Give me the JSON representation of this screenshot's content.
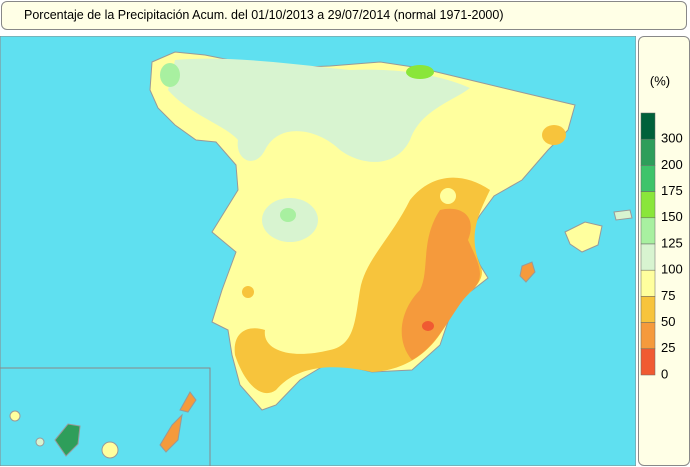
{
  "title": "Porcentaje de la Precipitación Acum. del 01/10/2013 a  29/07/2014  (normal 1971-2000)",
  "legend": {
    "unit": "(%)",
    "items": [
      {
        "value": 300,
        "color": "#00613a"
      },
      {
        "value": 200,
        "color": "#2e9e5a"
      },
      {
        "value": 175,
        "color": "#3ec46a"
      },
      {
        "value": 150,
        "color": "#8ae63a"
      },
      {
        "value": 125,
        "color": "#a8f0a0"
      },
      {
        "value": 100,
        "color": "#d8f4d0"
      },
      {
        "value": 75,
        "color": "#ffff9e"
      },
      {
        "value": 50,
        "color": "#f7c43c"
      },
      {
        "value": 25,
        "color": "#f59a3c"
      },
      {
        "value": 0,
        "color": "#f05a32"
      }
    ]
  }
}
